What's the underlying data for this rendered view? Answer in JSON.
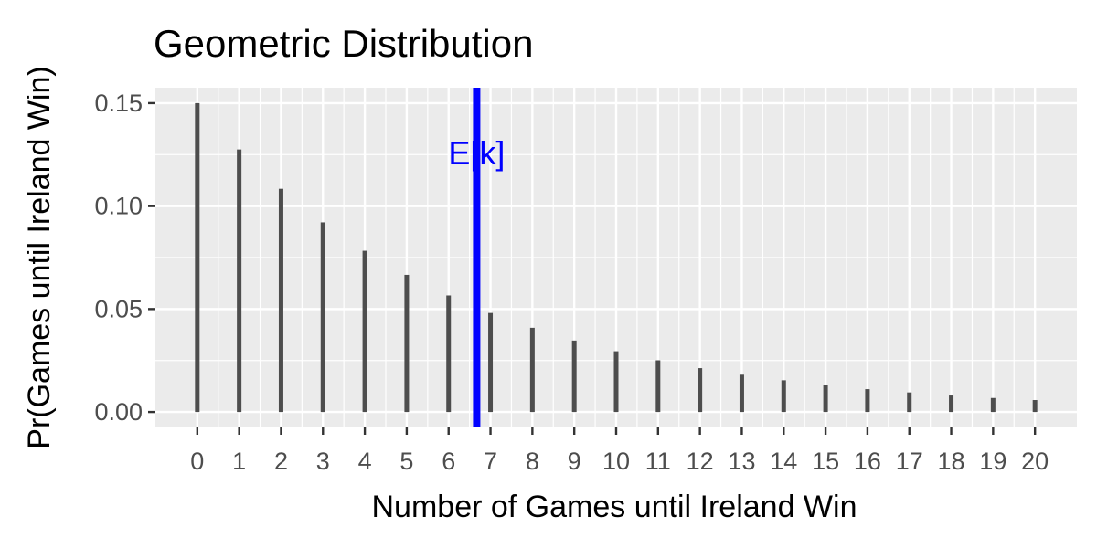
{
  "chart_data": {
    "type": "bar",
    "title": "Geometric  Distribution",
    "xlabel": "Number of Games until Ireland Win",
    "ylabel": "Pr(Games until Ireland Win)",
    "x": [
      0,
      1,
      2,
      3,
      4,
      5,
      6,
      7,
      8,
      9,
      10,
      11,
      12,
      13,
      14,
      15,
      16,
      17,
      18,
      19,
      20
    ],
    "values": [
      0.15,
      0.1275,
      0.1084,
      0.0921,
      0.0783,
      0.0666,
      0.0566,
      0.0481,
      0.0409,
      0.0347,
      0.0295,
      0.0251,
      0.0213,
      0.0181,
      0.0154,
      0.0131,
      0.0111,
      0.0095,
      0.008,
      0.0068,
      0.0058
    ],
    "x_tick_labels": [
      "0",
      "1",
      "2",
      "3",
      "4",
      "5",
      "6",
      "7",
      "8",
      "9",
      "10",
      "11",
      "12",
      "13",
      "14",
      "15",
      "16",
      "17",
      "18",
      "19",
      "20"
    ],
    "y_tick_labels": [
      "0.00",
      "0.05",
      "0.10",
      "0.15"
    ],
    "y_ticks": [
      0,
      0.05,
      0.1,
      0.15
    ],
    "xlim": [
      -1,
      21
    ],
    "ylim": [
      -0.0075,
      0.1575
    ],
    "grid": true,
    "bar_color": "#4d4d4d",
    "panel_color": "#ebebeb",
    "annotation": {
      "label": "E[k]",
      "x": 6.67,
      "color": "#0000ff"
    }
  }
}
